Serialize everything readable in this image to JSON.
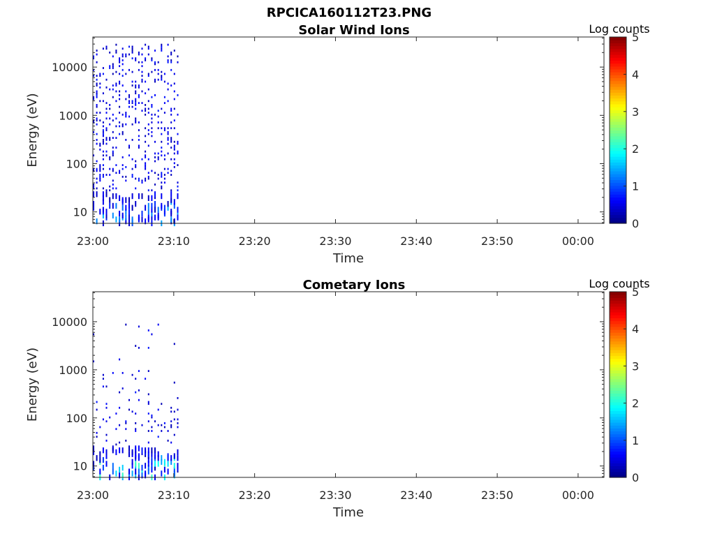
{
  "figure_title": "RPCICA160112T23.PNG",
  "chart_data": [
    {
      "type": "heatmap",
      "title": "Solar Wind Ions",
      "xlabel": "Time",
      "ylabel": "Energy (eV)",
      "x_tick_labels": [
        "23:00",
        "23:10",
        "23:20",
        "23:30",
        "23:40",
        "23:50",
        "00:00"
      ],
      "x_tick_minutes": [
        0,
        10,
        20,
        30,
        40,
        50,
        60
      ],
      "xlim_minutes": [
        0,
        63.2
      ],
      "y_scale": "log",
      "ylim": [
        5.8,
        42000
      ],
      "y_ticks": [
        10,
        100,
        1000,
        10000
      ],
      "y_tick_labels": [
        "10",
        "100",
        "1000",
        "10000"
      ],
      "colorbar": {
        "label": "Log counts",
        "range": [
          0,
          5
        ],
        "ticks": [
          "0",
          "1",
          "2",
          "3",
          "4",
          "5"
        ],
        "colormap": "jet"
      },
      "data_extent_minutes": [
        0,
        10.7
      ],
      "approx_max_log_counts": 1.9
    },
    {
      "type": "heatmap",
      "title": "Cometary Ions",
      "xlabel": "Time",
      "ylabel": "Energy (eV)",
      "x_tick_labels": [
        "23:00",
        "23:10",
        "23:20",
        "23:30",
        "23:40",
        "23:50",
        "00:00"
      ],
      "x_tick_minutes": [
        0,
        10,
        20,
        30,
        40,
        50,
        60
      ],
      "xlim_minutes": [
        0,
        63.2
      ],
      "y_scale": "log",
      "ylim": [
        5.8,
        42000
      ],
      "y_ticks": [
        10,
        100,
        1000,
        10000
      ],
      "y_tick_labels": [
        "10",
        "100",
        "1000",
        "10000"
      ],
      "colorbar": {
        "label": "Log counts",
        "range": [
          0,
          5
        ],
        "ticks": [
          "0",
          "1",
          "2",
          "3",
          "4",
          "5"
        ],
        "colormap": "jet"
      },
      "data_extent_minutes": [
        0,
        10.7
      ],
      "approx_max_log_counts": 2.2
    }
  ]
}
